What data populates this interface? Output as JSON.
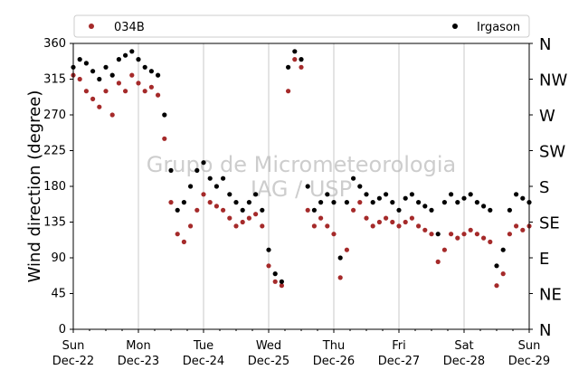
{
  "chart_data": {
    "type": "scatter",
    "title": "",
    "xlabel": "",
    "ylabel": "Wind direction (degree)",
    "ylim": [
      0,
      360
    ],
    "yticks": [
      0,
      45,
      90,
      135,
      180,
      225,
      270,
      315,
      360
    ],
    "xlim": [
      "2024-12-22",
      "2024-12-29"
    ],
    "xtick_day_labels": [
      "Sun",
      "Mon",
      "Tue",
      "Wed",
      "Thu",
      "Fri",
      "Sat",
      "Sun"
    ],
    "xtick_date_labels": [
      "Dec-22",
      "Dec-23",
      "Dec-24",
      "Dec-25",
      "Dec-26",
      "Dec-27",
      "Dec-28",
      "Dec-29"
    ],
    "compass_labels": [
      "N",
      "NE",
      "E",
      "SE",
      "S",
      "SW",
      "W",
      "NW",
      "N"
    ],
    "grid": "vertical at day ticks",
    "legend_position": "top, above plot",
    "watermark": [
      "Grupo de Micrometeorologia",
      "IAG / USP"
    ],
    "series": [
      {
        "name": "034B",
        "color": "#a52a2a",
        "x": [
          0.0,
          0.1,
          0.2,
          0.3,
          0.4,
          0.5,
          0.6,
          0.7,
          0.8,
          0.9,
          1.0,
          1.1,
          1.2,
          1.3,
          1.4,
          1.5,
          1.6,
          1.7,
          1.8,
          1.9,
          2.0,
          2.1,
          2.2,
          2.3,
          2.4,
          2.5,
          2.6,
          2.7,
          2.8,
          2.9,
          3.0,
          3.1,
          3.2,
          3.3,
          3.4,
          3.5,
          3.6,
          3.7,
          3.8,
          3.9,
          4.0,
          4.1,
          4.2,
          4.3,
          4.4,
          4.5,
          4.6,
          4.7,
          4.8,
          4.9,
          5.0,
          5.1,
          5.2,
          5.3,
          5.4,
          5.5,
          5.6,
          5.7,
          5.8,
          5.9,
          6.0,
          6.1,
          6.2,
          6.3,
          6.4,
          6.5,
          6.6,
          6.7,
          6.8,
          6.9,
          7.0
        ],
        "y": [
          320,
          315,
          300,
          290,
          280,
          300,
          270,
          310,
          300,
          320,
          310,
          300,
          305,
          295,
          240,
          160,
          120,
          110,
          130,
          150,
          170,
          160,
          155,
          150,
          140,
          130,
          135,
          140,
          145,
          130,
          80,
          60,
          55,
          300,
          340,
          330,
          150,
          130,
          140,
          130,
          120,
          65,
          100,
          150,
          160,
          140,
          130,
          135,
          140,
          135,
          130,
          135,
          140,
          130,
          125,
          120,
          85,
          100,
          120,
          115,
          120,
          125,
          120,
          115,
          110,
          55,
          70,
          120,
          130,
          125,
          130
        ]
      },
      {
        "name": "Irgason",
        "color": "#000000",
        "x": [
          0.0,
          0.1,
          0.2,
          0.3,
          0.4,
          0.5,
          0.6,
          0.7,
          0.8,
          0.9,
          1.0,
          1.1,
          1.2,
          1.3,
          1.4,
          1.5,
          1.6,
          1.7,
          1.8,
          1.9,
          2.0,
          2.1,
          2.2,
          2.3,
          2.4,
          2.5,
          2.6,
          2.7,
          2.8,
          2.9,
          3.0,
          3.1,
          3.2,
          3.3,
          3.4,
          3.5,
          3.6,
          3.7,
          3.8,
          3.9,
          4.0,
          4.1,
          4.2,
          4.3,
          4.4,
          4.5,
          4.6,
          4.7,
          4.8,
          4.9,
          5.0,
          5.1,
          5.2,
          5.3,
          5.4,
          5.5,
          5.6,
          5.7,
          5.8,
          5.9,
          6.0,
          6.1,
          6.2,
          6.3,
          6.4,
          6.5,
          6.6,
          6.7,
          6.8,
          6.9,
          7.0
        ],
        "y": [
          330,
          340,
          335,
          325,
          315,
          330,
          320,
          340,
          345,
          350,
          340,
          330,
          325,
          320,
          270,
          200,
          150,
          160,
          180,
          200,
          210,
          190,
          180,
          190,
          170,
          160,
          150,
          160,
          170,
          150,
          100,
          70,
          60,
          330,
          350,
          340,
          180,
          150,
          160,
          170,
          160,
          90,
          160,
          190,
          180,
          170,
          160,
          165,
          170,
          160,
          150,
          165,
          170,
          160,
          155,
          150,
          120,
          160,
          170,
          160,
          165,
          170,
          160,
          155,
          150,
          80,
          100,
          150,
          170,
          165,
          160
        ]
      }
    ]
  }
}
